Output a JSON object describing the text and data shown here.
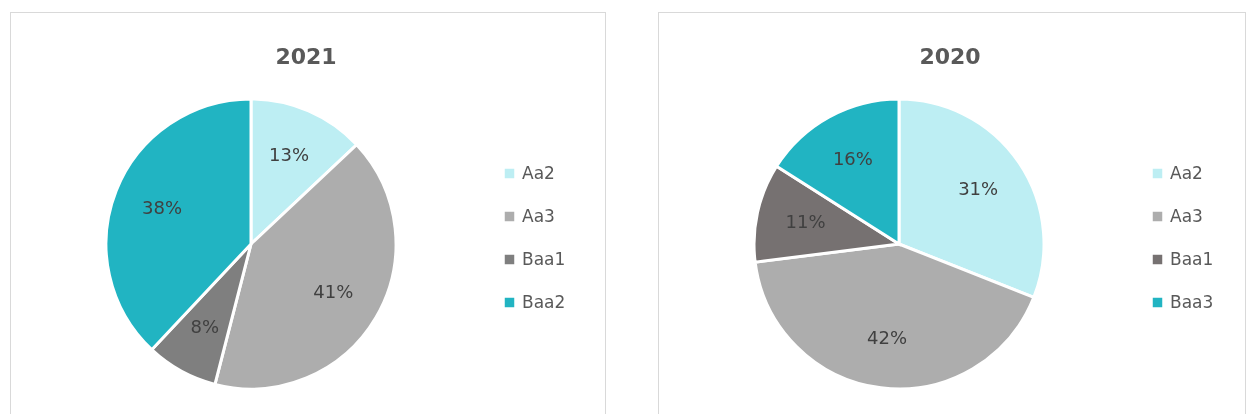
{
  "chart_data": [
    {
      "type": "pie",
      "title": "2021",
      "categories": [
        "Aa2",
        "Aa3",
        "Baa1",
        "Baa2"
      ],
      "values": [
        13,
        41,
        8,
        38
      ],
      "colors": [
        "#bdeef3",
        "#adadad",
        "#7f7f7f",
        "#21b4c2"
      ],
      "value_labels": [
        "13%",
        "41%",
        "8%",
        "38%"
      ],
      "legend": "right"
    },
    {
      "type": "pie",
      "title": "2020",
      "categories": [
        "Aa2",
        "Aa3",
        "Baa1",
        "Baa3"
      ],
      "values": [
        31,
        42,
        11,
        16
      ],
      "colors": [
        "#bdeef3",
        "#adadad",
        "#767171",
        "#21b4c2"
      ],
      "value_labels": [
        "31%",
        "42%",
        "11%",
        "16%"
      ],
      "legend": "right"
    }
  ]
}
